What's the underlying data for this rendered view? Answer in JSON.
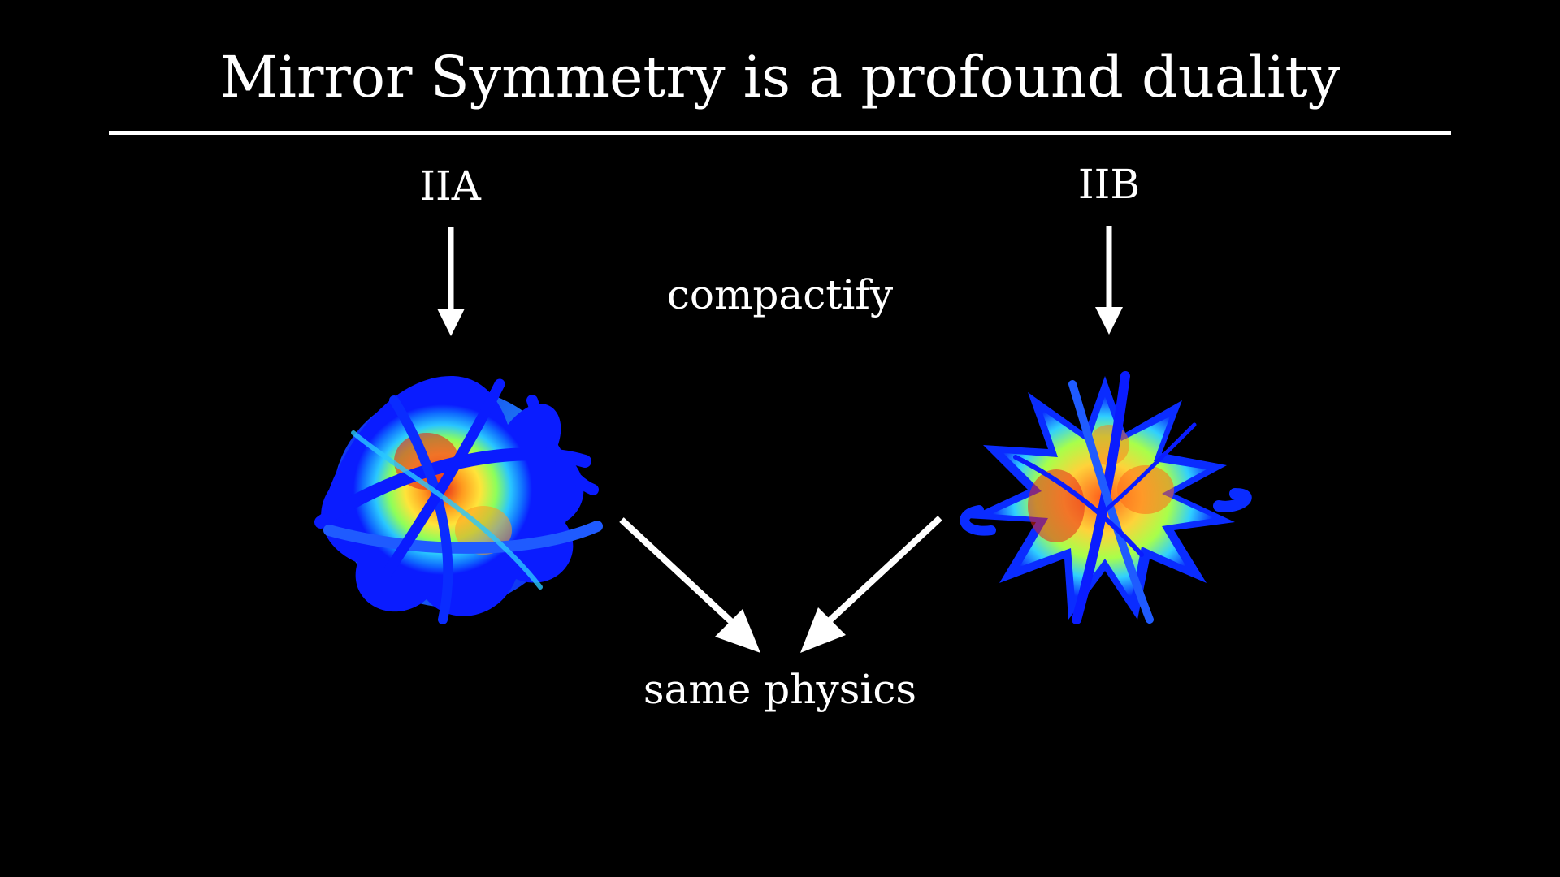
{
  "slide": {
    "title": "Mirror Symmetry is a profound duality",
    "left_theory": "IIA",
    "right_theory": "IIB",
    "process_label": "compactify",
    "result_label": "same physics"
  },
  "colors": {
    "background": "#000000",
    "foreground": "#ffffff",
    "manifold_gradient": [
      "#0a1cff",
      "#0f6bff",
      "#29c7ff",
      "#8dff5a",
      "#ffe43a",
      "#ff9a1f",
      "#e8281a"
    ]
  },
  "images": {
    "left_manifold": "calabi-yau-manifold-iia",
    "right_manifold": "calabi-yau-manifold-iib"
  }
}
